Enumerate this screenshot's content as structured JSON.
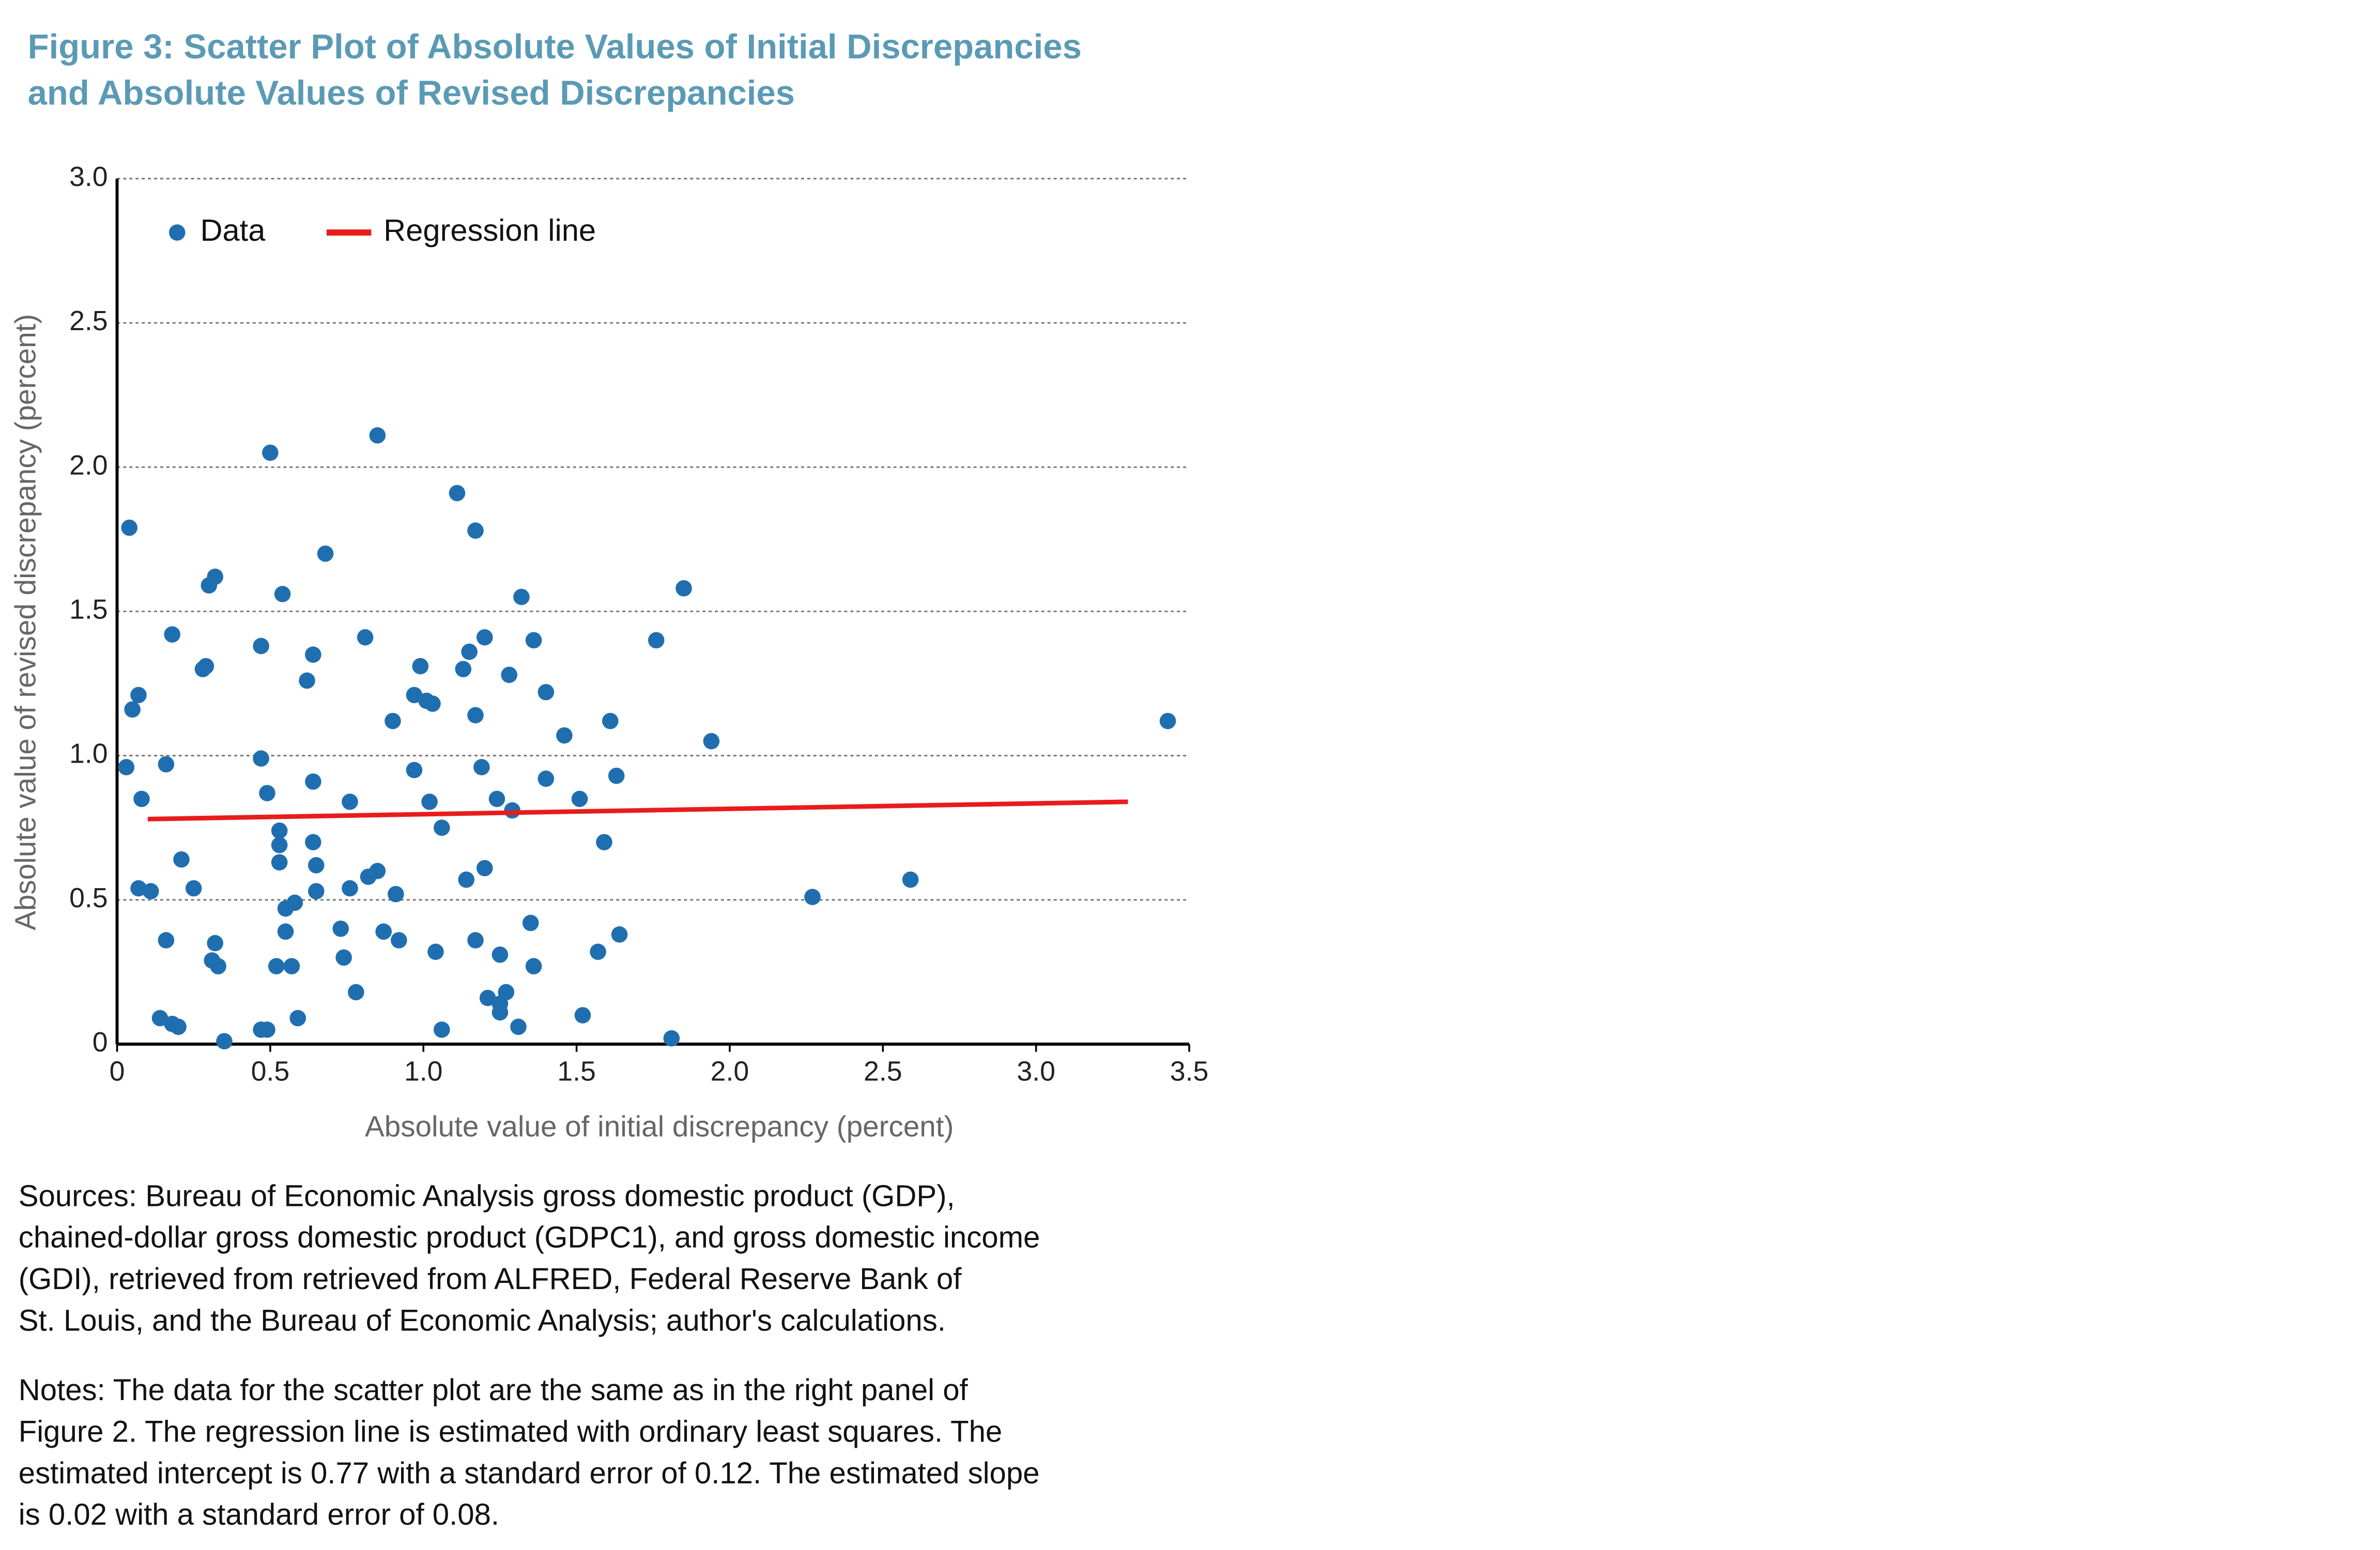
{
  "chart_data": {
    "type": "scatter",
    "title": [
      "Figure 3: Scatter Plot of Absolute Values of Initial Discrepancies",
      "and Absolute Values of Revised Discrepancies"
    ],
    "x_label": "Absolute value of initial discrepancy (percent)",
    "y_label": "Absolute value of revised discrepancy (percent)",
    "xlim": [
      0,
      3.5
    ],
    "ylim": [
      0,
      3.0
    ],
    "xticks": [
      0,
      0.5,
      {
        "value": 1,
        "label": "1.0"
      },
      1.5,
      {
        "value": 2,
        "label": "2.0"
      },
      2.5,
      {
        "value": 3,
        "label": "3.0"
      },
      3.5
    ],
    "yticks": [
      0,
      0.5,
      {
        "value": 1,
        "label": "1.0"
      },
      1.5,
      {
        "value": 2,
        "label": "2.0"
      },
      2.5,
      {
        "value": 3,
        "label": "3.0"
      }
    ],
    "grid": true,
    "legend": "top-left",
    "series": [
      {
        "name": "Data",
        "type": "scatter",
        "color": "#1f6fb0",
        "x": [
          0.03,
          0.04,
          0.05,
          0.07,
          0.08,
          0.07,
          0.11,
          0.14,
          0.16,
          0.16,
          0.18,
          0.18,
          0.2,
          0.21,
          0.25,
          0.28,
          0.29,
          0.3,
          0.32,
          0.31,
          0.32,
          0.33,
          0.35,
          0.47,
          0.47,
          0.47,
          0.49,
          0.49,
          0.5,
          0.52,
          0.53,
          0.53,
          0.53,
          0.54,
          0.55,
          0.55,
          0.57,
          0.58,
          0.59,
          0.62,
          0.64,
          0.64,
          0.64,
          0.65,
          0.65,
          0.68,
          0.73,
          0.74,
          0.76,
          0.76,
          0.78,
          0.81,
          0.82,
          0.85,
          0.85,
          0.87,
          0.9,
          0.91,
          0.92,
          0.97,
          0.97,
          0.99,
          1.01,
          1.02,
          1.03,
          1.04,
          1.06,
          1.06,
          1.11,
          1.13,
          1.15,
          1.14,
          1.17,
          1.17,
          1.17,
          1.19,
          1.2,
          1.2,
          1.21,
          1.24,
          1.25,
          1.25,
          1.25,
          1.27,
          1.28,
          1.29,
          1.31,
          1.32,
          1.35,
          1.36,
          1.36,
          1.4,
          1.4,
          1.46,
          1.51,
          1.52,
          1.57,
          1.59,
          1.61,
          1.63,
          1.64,
          1.76,
          1.81,
          1.85,
          1.94,
          2.27,
          2.59,
          3.43
        ],
        "values": [
          0.96,
          1.79,
          1.16,
          1.21,
          0.85,
          0.54,
          0.53,
          0.09,
          0.97,
          0.36,
          1.42,
          0.07,
          0.06,
          0.64,
          0.54,
          1.3,
          1.31,
          1.59,
          1.62,
          0.29,
          0.35,
          0.27,
          0.01,
          1.38,
          0.99,
          0.05,
          0.05,
          0.87,
          2.05,
          0.27,
          0.69,
          0.74,
          0.63,
          1.56,
          0.47,
          0.39,
          0.27,
          0.49,
          0.09,
          1.26,
          1.35,
          0.91,
          0.7,
          0.53,
          0.62,
          1.7,
          0.4,
          0.3,
          0.84,
          0.54,
          0.18,
          1.41,
          0.58,
          2.11,
          0.6,
          0.39,
          1.12,
          0.52,
          0.36,
          1.21,
          0.95,
          1.31,
          1.19,
          0.84,
          1.18,
          0.32,
          0.75,
          0.05,
          1.91,
          1.3,
          1.36,
          0.57,
          1.78,
          1.14,
          0.36,
          0.96,
          1.41,
          0.61,
          0.16,
          0.85,
          0.14,
          0.31,
          0.11,
          0.18,
          1.28,
          0.81,
          0.06,
          1.55,
          0.42,
          1.4,
          0.27,
          1.22,
          0.92,
          1.07,
          0.85,
          0.1,
          0.32,
          0.7,
          1.12,
          0.93,
          0.38,
          1.4,
          0.02,
          1.58,
          1.05,
          0.51,
          0.57,
          1.12
        ]
      },
      {
        "name": "Regression line",
        "type": "line",
        "color": "#e81c1c",
        "x": [
          0.1,
          3.3
        ],
        "values": [
          0.78,
          0.84
        ]
      }
    ],
    "sources": [
      "Sources: Bureau of Economic Analysis gross domestic product (GDP),",
      "chained-dollar gross domestic product (GDPC1), and gross domestic income",
      "(GDI), retrieved from retrieved from ALFRED, Federal Reserve Bank of",
      "St. Louis, and the Bureau of Economic Analysis; author's calculations."
    ],
    "notes": [
      "Notes: The data for the scatter plot are the same as in the right panel of",
      "Figure 2. The regression line is estimated with ordinary least squares. The",
      "estimated intercept is 0.77 with a standard error of 0.12. The estimated slope",
      "is 0.02 with a standard error of 0.08."
    ]
  }
}
